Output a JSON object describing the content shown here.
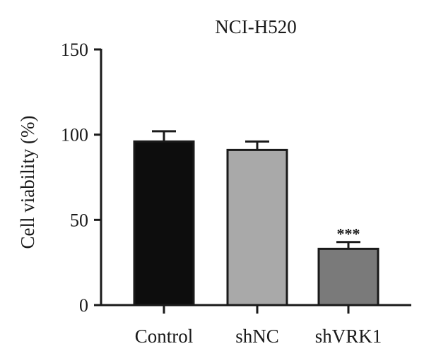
{
  "chart_data": {
    "type": "bar",
    "title": "NCI-H520",
    "xlabel": "",
    "ylabel": "Cell viability (%)",
    "ylim": [
      0,
      150
    ],
    "yticks": [
      0,
      50,
      100,
      150
    ],
    "categories": [
      "Control",
      "shNC",
      "shVRK1"
    ],
    "values": [
      96,
      91,
      33
    ],
    "errors": [
      6,
      5,
      4
    ],
    "bar_colors": [
      "#0d0d0d",
      "#a9a9a9",
      "#7a7a7a"
    ],
    "annotations": [
      "",
      "",
      "***"
    ],
    "grid": false,
    "legend": "none"
  }
}
